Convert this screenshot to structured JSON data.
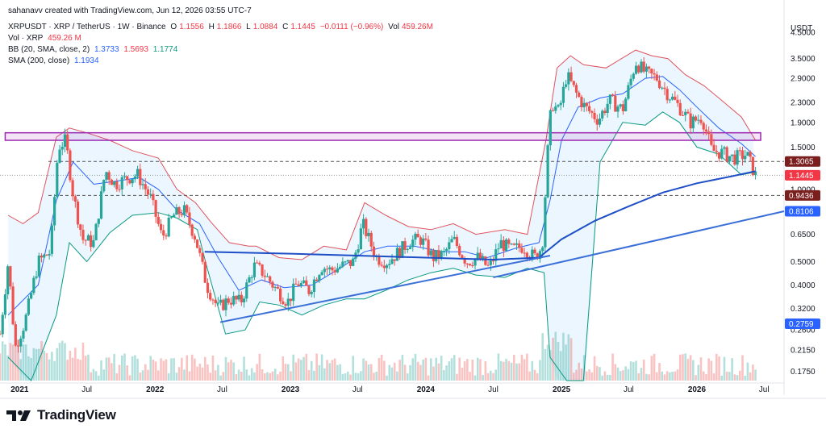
{
  "credit": "sahanavv created with TradingView.com, Jun 12, 2026 03:55 UTC-7",
  "legend": {
    "symbol": "XRPUSDT · XRP / TetherUS · 1W · Binance",
    "ohlc": [
      {
        "k": "O",
        "v": "1.1556"
      },
      {
        "k": "H",
        "v": "1.1866"
      },
      {
        "k": "L",
        "v": "1.0884"
      },
      {
        "k": "C",
        "v": "1.1445"
      }
    ],
    "change": "−0.0111 (−0.96%)",
    "vol_label": "Vol",
    "vol_value": "459.26M",
    "vol_line_label": "Vol · XRP",
    "vol_line_value": "459.26 M",
    "bb_label": "BB (20, SMA, close, 2)",
    "bb_values": [
      "1.3733",
      "1.5693",
      "1.1774"
    ],
    "sma_label": "SMA (200, close)",
    "sma_value": "1.1934"
  },
  "currency": "USDT",
  "brand": "TradingView",
  "colors": {
    "up": "#26a69a",
    "down": "#ef5350",
    "bb_upper": "#e0535e",
    "bb_basis": "#2962ff",
    "bb_lower": "#089981",
    "bb_fill": "#e3f2fd",
    "sma": "#1e4fc7",
    "trend": "#3a6fd8",
    "zone": "#9c27b0",
    "dash": "#555555"
  },
  "chart_data": {
    "type": "candlestick",
    "y_scale": "log",
    "y_ticks": [
      "4.5000",
      "3.5000",
      "2.9000",
      "2.3000",
      "1.9000",
      "1.5000",
      "1.3000",
      "1.0000",
      "0.6500",
      "0.5000",
      "0.4000",
      "0.3200",
      "0.2600",
      "0.2150",
      "0.1750"
    ],
    "y_tick_values": [
      4.5,
      3.5,
      2.9,
      2.3,
      1.9,
      1.5,
      1.3,
      1.0,
      0.65,
      0.5,
      0.4,
      0.32,
      0.26,
      0.215,
      0.175
    ],
    "x_ticks": [
      "2021",
      "Jul",
      "2022",
      "Jul",
      "2023",
      "Jul",
      "2024",
      "Jul",
      "2025",
      "Jul",
      "2026",
      "Jul"
    ],
    "x_tick_dates": [
      "2021-01-01",
      "2021-07-01",
      "2022-01-01",
      "2022-07-01",
      "2023-01-01",
      "2023-07-01",
      "2024-01-01",
      "2024-07-01",
      "2025-01-01",
      "2025-07-01",
      "2026-01-01",
      "2026-07-01"
    ],
    "x_range": [
      "2020-11-09",
      "2026-08-24"
    ],
    "y_range": [
      0.16,
      5.1
    ],
    "price_labels": [
      {
        "text": "1.3065",
        "value": 1.3065,
        "bg": "#7b1e1e"
      },
      {
        "text": "1.1445",
        "value": 1.1445,
        "bg": "#f23645"
      },
      {
        "text": "0.9436",
        "value": 0.9436,
        "bg": "#7b1e1e"
      },
      {
        "text": "0.8106",
        "value": 0.8106,
        "bg": "#2962ff"
      },
      {
        "text": "0.2759",
        "value": 0.2759,
        "bg": "#2962ff"
      }
    ],
    "zone": {
      "from": "2020-11-23",
      "to": "2026-06-22",
      "low": 1.6,
      "high": 1.72
    },
    "dashed_levels": [
      1.3065,
      0.9436
    ],
    "dotted_levels": [
      1.1445
    ],
    "sma200": [
      [
        "2022-05-15",
        0.55
      ],
      [
        "2023-01-01",
        0.54
      ],
      [
        "2023-07-01",
        0.53
      ],
      [
        "2024-01-01",
        0.52
      ],
      [
        "2024-07-01",
        0.51
      ],
      [
        "2024-11-01",
        0.52
      ],
      [
        "2025-01-01",
        0.62
      ],
      [
        "2025-04-01",
        0.74
      ],
      [
        "2025-07-01",
        0.85
      ],
      [
        "2025-10-01",
        0.97
      ],
      [
        "2026-01-01",
        1.06
      ],
      [
        "2026-04-01",
        1.13
      ],
      [
        "2026-06-08",
        1.19
      ]
    ],
    "trendlines": [
      {
        "from": [
          "2022-06-26",
          0.28
        ],
        "to": [
          "2024-12-01",
          0.53
        ],
        "extend_to": "2024-12-01"
      },
      {
        "from": [
          "2024-07-01",
          0.43
        ],
        "to": [
          "2026-08-24",
          0.8106
        ]
      }
    ],
    "bb_upper": [
      [
        "2020-12-01",
        0.78
      ],
      [
        "2021-01-10",
        0.72
      ],
      [
        "2021-02-20",
        0.8
      ],
      [
        "2021-04-10",
        1.65
      ],
      [
        "2021-05-15",
        1.8
      ],
      [
        "2021-07-01",
        1.72
      ],
      [
        "2021-09-01",
        1.6
      ],
      [
        "2021-11-01",
        1.45
      ],
      [
        "2022-01-10",
        1.35
      ],
      [
        "2022-03-01",
        1.0
      ],
      [
        "2022-04-20",
        0.88
      ],
      [
        "2022-06-01",
        0.73
      ],
      [
        "2022-07-20",
        0.6
      ],
      [
        "2022-09-10",
        0.58
      ],
      [
        "2022-10-01",
        0.58
      ],
      [
        "2022-12-01",
        0.52
      ],
      [
        "2023-02-01",
        0.51
      ],
      [
        "2023-04-01",
        0.58
      ],
      [
        "2023-06-01",
        0.56
      ],
      [
        "2023-07-20",
        0.88
      ],
      [
        "2023-09-15",
        0.78
      ],
      [
        "2023-11-15",
        0.7
      ],
      [
        "2024-01-15",
        0.68
      ],
      [
        "2024-03-15",
        0.72
      ],
      [
        "2024-05-15",
        0.65
      ],
      [
        "2024-08-01",
        0.68
      ],
      [
        "2024-10-01",
        0.65
      ],
      [
        "2024-11-20",
        1.6
      ],
      [
        "2024-12-20",
        3.2
      ],
      [
        "2025-01-25",
        3.6
      ],
      [
        "2025-03-01",
        3.3
      ],
      [
        "2025-05-01",
        3.2
      ],
      [
        "2025-07-20",
        3.8
      ],
      [
        "2025-09-01",
        3.6
      ],
      [
        "2025-10-15",
        3.5
      ],
      [
        "2025-12-01",
        3.0
      ],
      [
        "2026-01-20",
        2.7
      ],
      [
        "2026-03-01",
        2.4
      ],
      [
        "2026-05-01",
        2.0
      ],
      [
        "2026-06-08",
        1.6
      ]
    ],
    "bb_basis": [
      [
        "2020-12-01",
        0.3
      ],
      [
        "2021-02-20",
        0.4
      ],
      [
        "2021-04-10",
        0.9
      ],
      [
        "2021-05-25",
        1.3
      ],
      [
        "2021-07-20",
        1.05
      ],
      [
        "2021-09-15",
        1.08
      ],
      [
        "2021-11-20",
        1.12
      ],
      [
        "2022-01-10",
        1.0
      ],
      [
        "2022-03-01",
        0.82
      ],
      [
        "2022-05-01",
        0.72
      ],
      [
        "2022-06-20",
        0.52
      ],
      [
        "2022-08-15",
        0.38
      ],
      [
        "2022-10-15",
        0.42
      ],
      [
        "2022-12-15",
        0.39
      ],
      [
        "2023-03-01",
        0.4
      ],
      [
        "2023-05-15",
        0.47
      ],
      [
        "2023-07-20",
        0.55
      ],
      [
        "2023-09-20",
        0.58
      ],
      [
        "2023-12-01",
        0.58
      ],
      [
        "2024-02-15",
        0.55
      ],
      [
        "2024-04-15",
        0.55
      ],
      [
        "2024-06-15",
        0.52
      ],
      [
        "2024-09-01",
        0.57
      ],
      [
        "2024-11-01",
        0.6
      ],
      [
        "2024-12-01",
        0.9
      ],
      [
        "2025-01-01",
        1.6
      ],
      [
        "2025-02-15",
        2.2
      ],
      [
        "2025-04-15",
        2.4
      ],
      [
        "2025-06-15",
        2.5
      ],
      [
        "2025-08-15",
        2.9
      ],
      [
        "2025-10-01",
        2.95
      ],
      [
        "2025-11-15",
        2.6
      ],
      [
        "2026-01-01",
        2.2
      ],
      [
        "2026-03-01",
        1.8
      ],
      [
        "2026-05-01",
        1.55
      ],
      [
        "2026-06-08",
        1.37
      ]
    ],
    "bb_lower": [
      [
        "2020-12-01",
        0.2
      ],
      [
        "2021-02-01",
        0.15
      ],
      [
        "2021-04-10",
        0.3
      ],
      [
        "2021-05-15",
        0.6
      ],
      [
        "2021-07-01",
        0.5
      ],
      [
        "2021-09-01",
        0.66
      ],
      [
        "2021-11-01",
        0.78
      ],
      [
        "2022-01-10",
        0.8
      ],
      [
        "2022-03-01",
        0.76
      ],
      [
        "2022-04-25",
        0.68
      ],
      [
        "2022-05-20",
        0.48
      ],
      [
        "2022-07-10",
        0.25
      ],
      [
        "2022-09-01",
        0.26
      ],
      [
        "2022-10-10",
        0.34
      ],
      [
        "2022-12-01",
        0.33
      ],
      [
        "2023-02-01",
        0.3
      ],
      [
        "2023-04-01",
        0.33
      ],
      [
        "2023-06-01",
        0.35
      ],
      [
        "2023-07-20",
        0.35
      ],
      [
        "2023-09-15",
        0.38
      ],
      [
        "2023-11-15",
        0.42
      ],
      [
        "2024-01-15",
        0.45
      ],
      [
        "2024-03-15",
        0.47
      ],
      [
        "2024-05-15",
        0.44
      ],
      [
        "2024-08-01",
        0.43
      ],
      [
        "2024-10-01",
        0.47
      ],
      [
        "2024-11-15",
        0.45
      ],
      [
        "2024-12-01",
        0.2
      ],
      [
        "2025-01-15",
        0.12
      ],
      [
        "2025-03-01",
        0.12
      ],
      [
        "2025-04-15",
        1.3
      ],
      [
        "2025-06-15",
        1.9
      ],
      [
        "2025-08-15",
        1.85
      ],
      [
        "2025-10-01",
        2.1
      ],
      [
        "2025-11-15",
        1.9
      ],
      [
        "2026-01-01",
        1.5
      ],
      [
        "2026-03-01",
        1.4
      ],
      [
        "2026-05-01",
        1.15
      ],
      [
        "2026-06-08",
        1.18
      ]
    ],
    "price_path": [
      [
        "2020-11-09",
        0.25
      ],
      [
        "2020-12-01",
        0.5
      ],
      [
        "2020-12-20",
        0.22
      ],
      [
        "2021-01-15",
        0.28
      ],
      [
        "2021-02-20",
        0.5
      ],
      [
        "2021-03-25",
        0.55
      ],
      [
        "2021-04-15",
        1.5
      ],
      [
        "2021-05-05",
        1.6
      ],
      [
        "2021-05-25",
        0.95
      ],
      [
        "2021-06-20",
        0.62
      ],
      [
        "2021-07-20",
        0.6
      ],
      [
        "2021-08-20",
        1.2
      ],
      [
        "2021-09-15",
        1.05
      ],
      [
        "2021-10-20",
        1.12
      ],
      [
        "2021-11-15",
        1.15
      ],
      [
        "2021-12-20",
        0.92
      ],
      [
        "2022-01-20",
        0.63
      ],
      [
        "2022-02-20",
        0.78
      ],
      [
        "2022-03-20",
        0.82
      ],
      [
        "2022-04-20",
        0.63
      ],
      [
        "2022-05-20",
        0.4
      ],
      [
        "2022-06-20",
        0.32
      ],
      [
        "2022-07-20",
        0.35
      ],
      [
        "2022-08-20",
        0.34
      ],
      [
        "2022-09-25",
        0.48
      ],
      [
        "2022-10-20",
        0.45
      ],
      [
        "2022-11-20",
        0.39
      ],
      [
        "2022-12-25",
        0.34
      ],
      [
        "2023-01-20",
        0.41
      ],
      [
        "2023-02-20",
        0.38
      ],
      [
        "2023-03-25",
        0.48
      ],
      [
        "2023-04-20",
        0.46
      ],
      [
        "2023-05-20",
        0.48
      ],
      [
        "2023-06-20",
        0.5
      ],
      [
        "2023-07-15",
        0.72
      ],
      [
        "2023-08-20",
        0.52
      ],
      [
        "2023-09-20",
        0.5
      ],
      [
        "2023-10-20",
        0.55
      ],
      [
        "2023-11-20",
        0.61
      ],
      [
        "2023-12-20",
        0.62
      ],
      [
        "2024-01-20",
        0.52
      ],
      [
        "2024-02-20",
        0.54
      ],
      [
        "2024-03-15",
        0.62
      ],
      [
        "2024-04-20",
        0.5
      ],
      [
        "2024-05-20",
        0.52
      ],
      [
        "2024-06-20",
        0.47
      ],
      [
        "2024-07-20",
        0.6
      ],
      [
        "2024-08-20",
        0.56
      ],
      [
        "2024-09-20",
        0.58
      ],
      [
        "2024-10-20",
        0.52
      ],
      [
        "2024-11-10",
        0.58
      ],
      [
        "2024-11-25",
        1.45
      ],
      [
        "2024-12-05",
        2.3
      ],
      [
        "2024-12-25",
        2.1
      ],
      [
        "2025-01-15",
        3.0
      ],
      [
        "2025-02-10",
        2.5
      ],
      [
        "2025-03-05",
        2.2
      ],
      [
        "2025-04-10",
        1.95
      ],
      [
        "2025-05-10",
        2.35
      ],
      [
        "2025-06-15",
        2.15
      ],
      [
        "2025-07-20",
        3.4
      ],
      [
        "2025-08-15",
        3.05
      ],
      [
        "2025-09-15",
        2.9
      ],
      [
        "2025-10-15",
        2.5
      ],
      [
        "2025-11-15",
        2.2
      ],
      [
        "2025-12-15",
        1.9
      ],
      [
        "2026-01-15",
        2.0
      ],
      [
        "2026-02-10",
        1.45
      ],
      [
        "2026-03-10",
        1.42
      ],
      [
        "2026-04-10",
        1.35
      ],
      [
        "2026-05-15",
        1.4
      ],
      [
        "2026-06-08",
        1.1445
      ]
    ]
  }
}
